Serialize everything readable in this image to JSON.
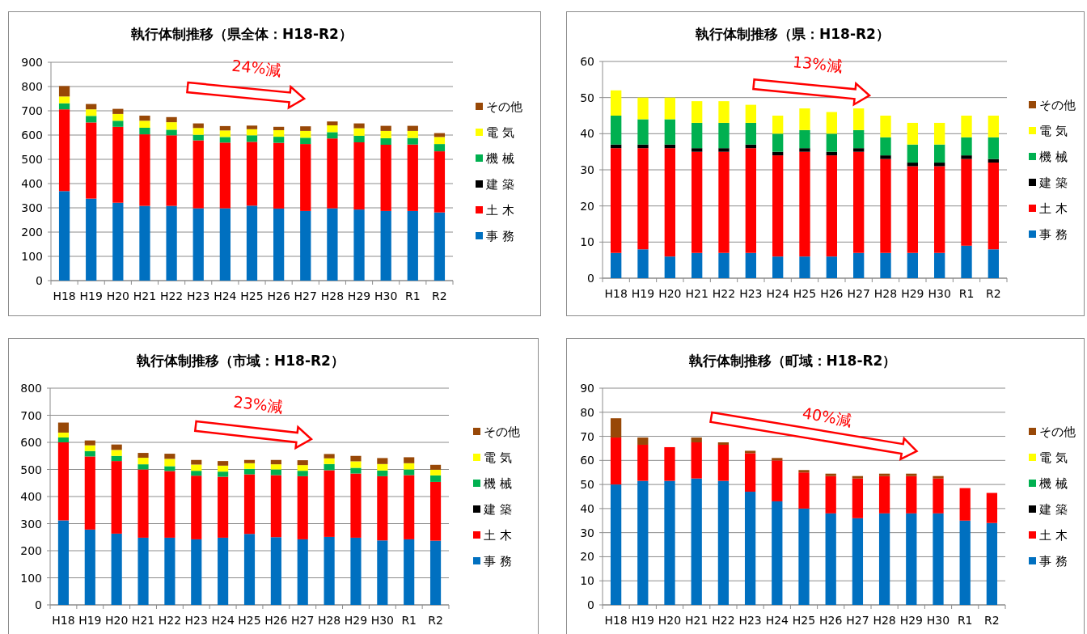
{
  "chart_data": [
    {
      "type": "bar",
      "title": "執行体制推移（県全体：H18-R2）",
      "stacked": true,
      "grid": "y",
      "legend": "right",
      "categories": [
        "H18",
        "H19",
        "H20",
        "H21",
        "H22",
        "H23",
        "H24",
        "H25",
        "H26",
        "H27",
        "H28",
        "H29",
        "H30",
        "R1",
        "R2"
      ],
      "ylim": [
        0,
        900
      ],
      "yticks": [
        0,
        100,
        200,
        300,
        400,
        500,
        600,
        700,
        800,
        900
      ],
      "annotations": [
        "24%減"
      ],
      "series": [
        {
          "name": "事 務",
          "color": "#0070c0",
          "values": [
            369,
            338,
            321,
            308,
            308,
            298,
            298,
            309,
            297,
            287,
            298,
            293,
            287,
            287,
            281
          ]
        },
        {
          "name": "土 木",
          "color": "#ff0000",
          "values": [
            337,
            314,
            313,
            295,
            291,
            280,
            271,
            263,
            271,
            276,
            288,
            277,
            273,
            274,
            252
          ]
        },
        {
          "name": "建 築",
          "color": "#000000",
          "values": [
            0,
            0,
            0,
            0,
            0,
            0,
            0,
            0,
            0,
            0,
            0,
            0,
            0,
            0,
            0
          ]
        },
        {
          "name": "機 械",
          "color": "#00b050",
          "values": [
            25,
            27,
            25,
            27,
            23,
            23,
            23,
            27,
            25,
            26,
            26,
            27,
            27,
            27,
            30
          ]
        },
        {
          "name": "電 気",
          "color": "#ffff00",
          "values": [
            28,
            27,
            28,
            29,
            31,
            28,
            27,
            25,
            27,
            28,
            28,
            31,
            30,
            29,
            29
          ]
        },
        {
          "name": "その他",
          "color": "#984807",
          "values": [
            43,
            22,
            21,
            21,
            21,
            19,
            18,
            15,
            14,
            19,
            16,
            20,
            21,
            21,
            16
          ]
        }
      ]
    },
    {
      "type": "bar",
      "title": "執行体制推移（県：H18-R2）",
      "stacked": true,
      "grid": "y",
      "legend": "right",
      "categories": [
        "H18",
        "H19",
        "H20",
        "H21",
        "H22",
        "H23",
        "H24",
        "H25",
        "H26",
        "H27",
        "H28",
        "H29",
        "H30",
        "R1",
        "R2"
      ],
      "ylim": [
        0,
        60
      ],
      "yticks": [
        0,
        10,
        20,
        30,
        40,
        50,
        60
      ],
      "annotations": [
        "13%減"
      ],
      "series": [
        {
          "name": "事 務",
          "color": "#0070c0",
          "values": [
            7,
            8,
            6,
            7,
            7,
            7,
            6,
            6,
            6,
            7,
            7,
            7,
            7,
            9,
            8
          ]
        },
        {
          "name": "土 木",
          "color": "#ff0000",
          "values": [
            29,
            28,
            30,
            28,
            28,
            29,
            28,
            29,
            28,
            28,
            26,
            24,
            24,
            24,
            24
          ]
        },
        {
          "name": "建 築",
          "color": "#000000",
          "values": [
            1,
            1,
            1,
            1,
            1,
            1,
            1,
            1,
            1,
            1,
            1,
            1,
            1,
            1,
            1
          ]
        },
        {
          "name": "機 械",
          "color": "#00b050",
          "values": [
            8,
            7,
            7,
            7,
            7,
            6,
            5,
            5,
            5,
            5,
            5,
            5,
            5,
            5,
            6
          ]
        },
        {
          "name": "電 気",
          "color": "#ffff00",
          "values": [
            7,
            6,
            6,
            6,
            6,
            5,
            5,
            6,
            6,
            6,
            6,
            6,
            6,
            6,
            6
          ]
        },
        {
          "name": "その他",
          "color": "#984807",
          "values": [
            0,
            0,
            0,
            0,
            0,
            0,
            0,
            0,
            0,
            0,
            0,
            0,
            0,
            0,
            0
          ]
        }
      ]
    },
    {
      "type": "bar",
      "title": "執行体制推移（市域：H18-R2）",
      "stacked": true,
      "grid": "y",
      "legend": "right",
      "categories": [
        "H18",
        "H19",
        "H20",
        "H21",
        "H22",
        "H23",
        "H24",
        "H25",
        "H26",
        "H27",
        "H28",
        "H29",
        "H30",
        "R1",
        "R2"
      ],
      "ylim": [
        0,
        800
      ],
      "yticks": [
        0,
        100,
        200,
        300,
        400,
        500,
        600,
        700,
        800
      ],
      "annotations": [
        "23%減"
      ],
      "series": [
        {
          "name": "事 務",
          "color": "#0070c0",
          "values": [
            312,
            278,
            263,
            248,
            248,
            242,
            248,
            262,
            250,
            242,
            251,
            248,
            238,
            242,
            237
          ]
        },
        {
          "name": "土 木",
          "color": "#ff0000",
          "values": [
            288,
            270,
            268,
            252,
            246,
            235,
            225,
            220,
            229,
            233,
            246,
            237,
            237,
            237,
            217
          ]
        },
        {
          "name": "建 築",
          "color": "#000000",
          "values": [
            0,
            0,
            0,
            0,
            0,
            0,
            0,
            0,
            0,
            0,
            0,
            0,
            0,
            0,
            0
          ]
        },
        {
          "name": "機 械",
          "color": "#00b050",
          "values": [
            18,
            20,
            19,
            19,
            18,
            18,
            19,
            20,
            21,
            20,
            23,
            21,
            21,
            21,
            24
          ]
        },
        {
          "name": "電 気",
          "color": "#ffff00",
          "values": [
            18,
            21,
            22,
            24,
            27,
            23,
            22,
            21,
            19,
            21,
            21,
            24,
            24,
            23,
            21
          ]
        },
        {
          "name": "その他",
          "color": "#984807",
          "values": [
            37,
            18,
            20,
            18,
            19,
            17,
            17,
            12,
            16,
            18,
            16,
            20,
            22,
            22,
            18
          ]
        }
      ]
    },
    {
      "type": "bar",
      "title": "執行体制推移（町域：H18-R2）",
      "stacked": true,
      "grid": "y",
      "legend": "right",
      "categories": [
        "H18",
        "H19",
        "H20",
        "H21",
        "H22",
        "H23",
        "H24",
        "H25",
        "H26",
        "H27",
        "H28",
        "H29",
        "H30",
        "R1",
        "R2"
      ],
      "ylim": [
        0,
        90
      ],
      "yticks": [
        0,
        10,
        20,
        30,
        40,
        50,
        60,
        70,
        80,
        90
      ],
      "annotations": [
        "40%減"
      ],
      "series": [
        {
          "name": "事 務",
          "color": "#0070c0",
          "values": [
            50,
            51.5,
            51.5,
            52.5,
            51.5,
            47,
            43,
            40,
            38,
            36,
            38,
            38,
            38,
            35,
            34
          ]
        },
        {
          "name": "土 木",
          "color": "#ff0000",
          "values": [
            19.5,
            15,
            14,
            15,
            15,
            16,
            17,
            15,
            15.5,
            16.5,
            15.5,
            15.5,
            14.5,
            13.5,
            12.5
          ]
        },
        {
          "name": "建 築",
          "color": "#000000",
          "values": [
            0,
            0,
            0,
            0,
            0,
            0,
            0,
            0,
            0,
            0,
            0,
            0,
            0,
            0,
            0
          ]
        },
        {
          "name": "機 械",
          "color": "#00b050",
          "values": [
            0,
            0,
            0,
            0,
            0,
            0,
            0,
            0,
            0,
            0,
            0,
            0,
            0,
            0,
            0
          ]
        },
        {
          "name": "電 気",
          "color": "#ffff00",
          "values": [
            0,
            0,
            0,
            0,
            0,
            0,
            0,
            0,
            0,
            0,
            0,
            0,
            0,
            0,
            0
          ]
        },
        {
          "name": "その他",
          "color": "#984807",
          "values": [
            8,
            3,
            0,
            2,
            1,
            1,
            1,
            1,
            1,
            1,
            1,
            1,
            1,
            0,
            0
          ]
        }
      ]
    }
  ]
}
